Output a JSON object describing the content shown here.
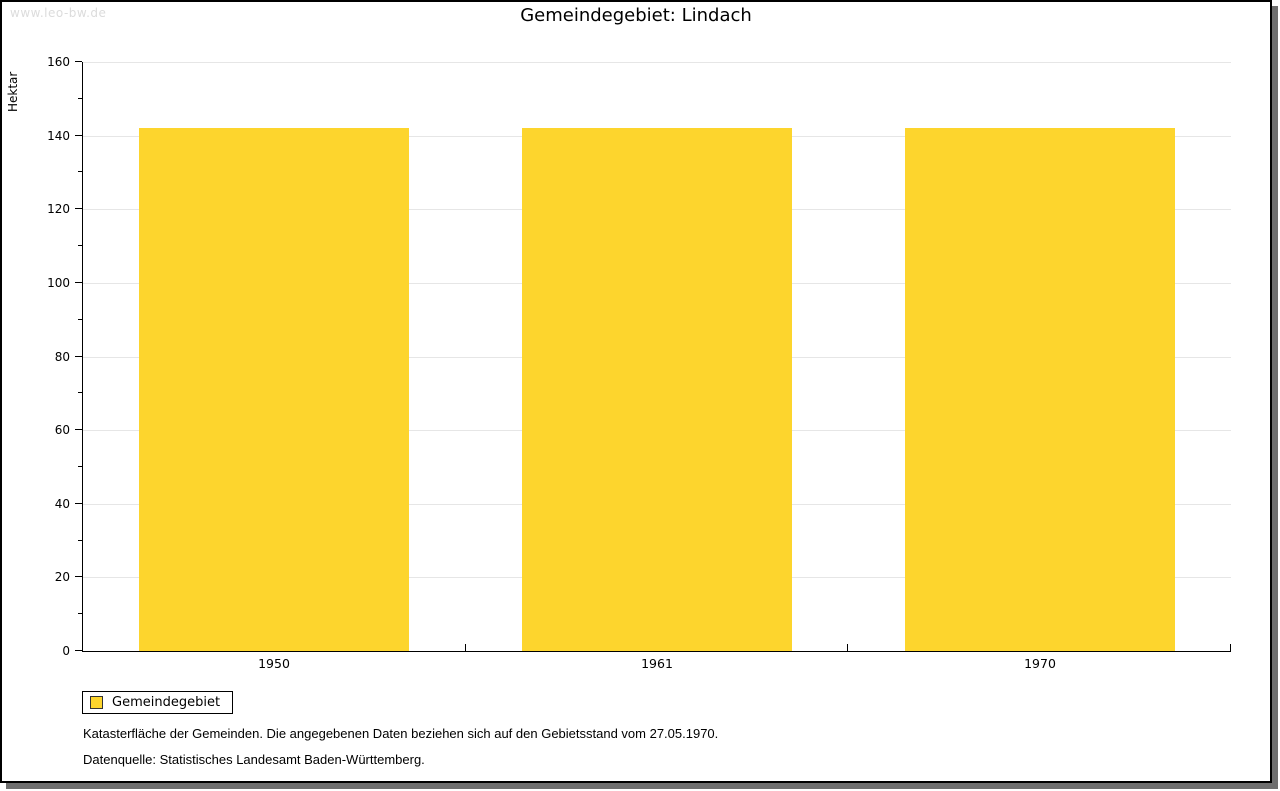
{
  "watermark": "www.leo-bw.de",
  "title": "Gemeindegebiet: Lindach",
  "legend": {
    "label": "Gemeindegebiet"
  },
  "footnotes": [
    "Katasterfläche der Gemeinden. Die angegebenen Daten beziehen sich auf den Gebietsstand vom 27.05.1970.",
    "Datenquelle: Statistisches Landesamt Baden-Württemberg."
  ],
  "colors": {
    "bar": "#fdd52d",
    "grid": "#e6e6e6",
    "axis": "#000000",
    "shadow": "#6e6e6e",
    "watermark": "#dcdcdc"
  },
  "chart_data": {
    "type": "bar",
    "title": "Gemeindegebiet: Lindach",
    "categories": [
      "1950",
      "1961",
      "1970"
    ],
    "series": [
      {
        "name": "Gemeindegebiet",
        "values": [
          142,
          142,
          142
        ],
        "color": "#fdd52d"
      }
    ],
    "xlabel": "",
    "ylabel": "Hektar",
    "ylim": [
      0,
      160
    ],
    "ytick_step": 20,
    "yminor_step": 10,
    "grid": true,
    "legend_position": "bottom-left"
  }
}
